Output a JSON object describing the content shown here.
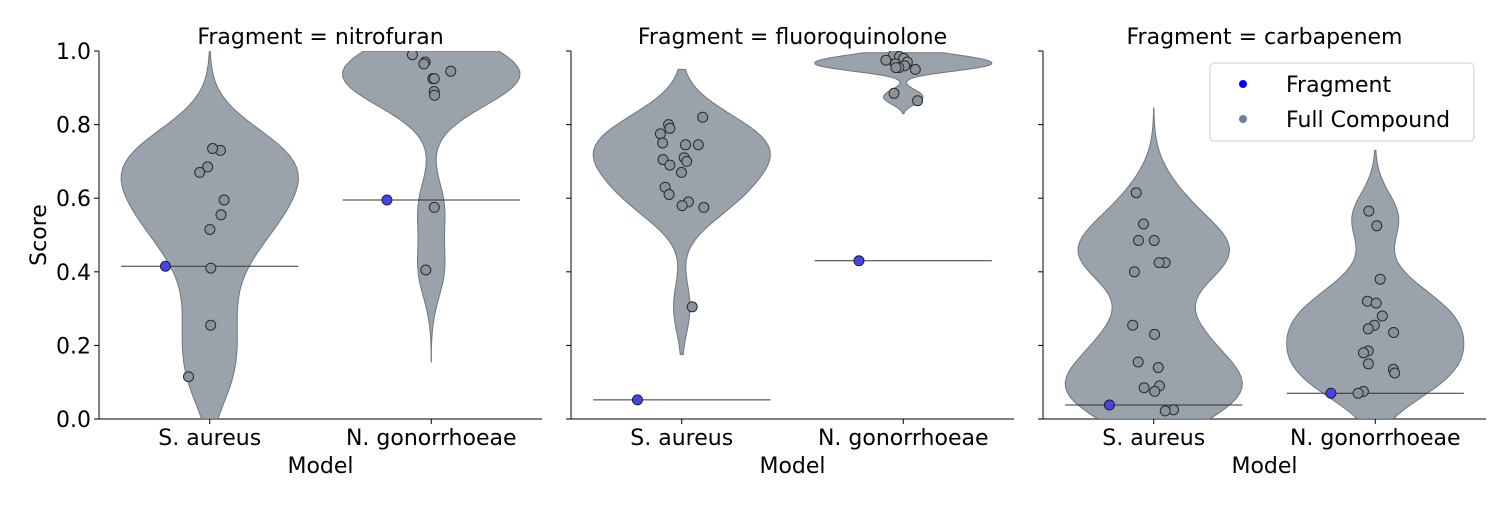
{
  "chart_data": {
    "type": "violin",
    "ylabel": "Score",
    "xlabel": "Model",
    "ylim": [
      0,
      1
    ],
    "yticks": [
      "0.0",
      "0.2",
      "0.4",
      "0.6",
      "0.8",
      "1.0"
    ],
    "categories": [
      "S. aureus",
      "N. gonorrhoeae"
    ],
    "legend": {
      "placement": "top-right",
      "entries": [
        {
          "label": "Fragment",
          "color": "#0000ff"
        },
        {
          "label": "Full Compound",
          "color": "#708090"
        }
      ]
    },
    "colors": {
      "fragment": "#4444ee",
      "compound": "#8a939c",
      "violin": "#9aa2ab"
    },
    "panels": [
      {
        "title": "Fragment = nitrofuran",
        "groups": [
          {
            "model": "S. aureus",
            "fragment": 0.415,
            "compound": [
              0.73,
              0.735,
              0.685,
              0.67,
              0.595,
              0.555,
              0.515,
              0.41,
              0.255,
              0.115
            ],
            "violin_range": [
              0.0,
              1.0
            ]
          },
          {
            "model": "N. gonorrhoeae",
            "fragment": 0.595,
            "compound": [
              0.99,
              0.97,
              0.965,
              0.945,
              0.925,
              0.925,
              0.89,
              0.88,
              0.575,
              0.405
            ],
            "violin_range": [
              0.155,
              1.0
            ]
          }
        ]
      },
      {
        "title": "Fragment = fluoroquinolone",
        "groups": [
          {
            "model": "S. aureus",
            "fragment": 0.052,
            "compound": [
              0.82,
              0.8,
              0.79,
              0.775,
              0.75,
              0.745,
              0.745,
              0.71,
              0.705,
              0.7,
              0.69,
              0.67,
              0.63,
              0.61,
              0.59,
              0.58,
              0.575,
              0.305
            ],
            "violin_range": [
              0.175,
              0.95
            ]
          },
          {
            "model": "N. gonorrhoeae",
            "fragment": 0.43,
            "compound": [
              0.99,
              0.985,
              0.98,
              0.975,
              0.97,
              0.965,
              0.96,
              0.955,
              0.955,
              0.95,
              0.885,
              0.865
            ],
            "violin_range": [
              0.83,
              0.995
            ]
          }
        ]
      },
      {
        "title": "Fragment = carbapenem",
        "groups": [
          {
            "model": "S. aureus",
            "fragment": 0.038,
            "compound": [
              0.615,
              0.53,
              0.485,
              0.485,
              0.425,
              0.425,
              0.4,
              0.255,
              0.23,
              0.155,
              0.14,
              0.09,
              0.085,
              0.075,
              0.025,
              0.022
            ],
            "violin_range": [
              0.0,
              0.845
            ]
          },
          {
            "model": "N. gonorrhoeae",
            "fragment": 0.07,
            "compound": [
              0.565,
              0.525,
              0.38,
              0.32,
              0.315,
              0.28,
              0.255,
              0.245,
              0.235,
              0.185,
              0.18,
              0.15,
              0.135,
              0.125,
              0.075,
              0.07
            ],
            "violin_range": [
              0.0,
              0.73
            ]
          }
        ]
      }
    ]
  }
}
